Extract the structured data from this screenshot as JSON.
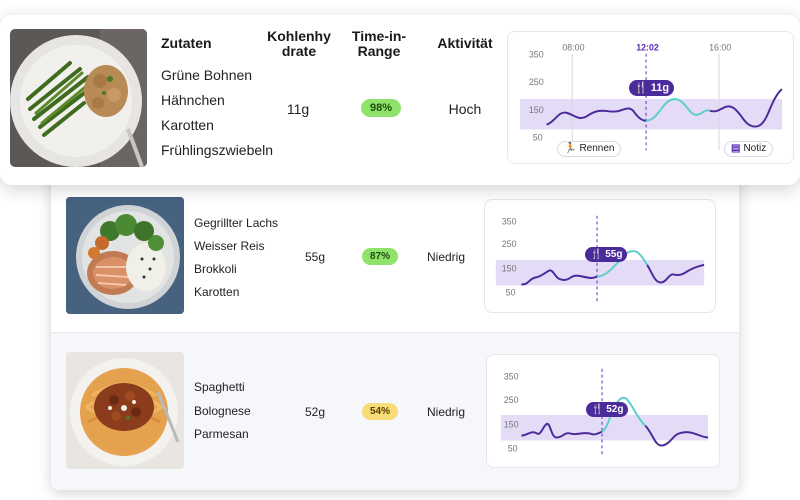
{
  "header": {
    "ingredients": "Zutaten",
    "carbs": "Kohlenhy\ndrate",
    "tir": "Time-in-\nRange",
    "activity": "Aktivität"
  },
  "meals": [
    {
      "ingredients": [
        "Grüne Bohnen",
        "Hähnchen",
        "Karotten",
        "Frühlingszwiebeln"
      ],
      "carbs": "11g",
      "tir": "98%",
      "tir_color": "#8fe36a",
      "activity": "Hoch",
      "chart": {
        "y_ticks": [
          "350",
          "250",
          "150",
          "50"
        ],
        "x_ticks": [
          "08:00",
          "12:02",
          "16:00"
        ],
        "meal_label": "11g",
        "chips": [
          "Rennen",
          "Notiz"
        ]
      }
    },
    {
      "ingredients": [
        "Gegrillter Lachs",
        "Weisser Reis",
        "Brokkoli",
        "Karotten"
      ],
      "carbs": "55g",
      "tir": "87%",
      "tir_color": "#8fe36a",
      "activity": "Niedrig",
      "chart": {
        "y_ticks": [
          "350",
          "250",
          "150",
          "50"
        ],
        "meal_label": "55g"
      }
    },
    {
      "ingredients": [
        "Spaghetti",
        "Bolognese",
        "Parmesan"
      ],
      "carbs": "52g",
      "tir": "54%",
      "tir_color": "#f7dc77",
      "activity": "Niedrig",
      "chart": {
        "y_ticks": [
          "350",
          "250",
          "150",
          "50"
        ],
        "meal_label": "52g"
      }
    }
  ],
  "colors": {
    "purple_line": "#4b2a9b",
    "teal_line": "#5ccfc8",
    "range_band": "#e4dcf7",
    "accent": "#5a2bb5"
  },
  "icons": {
    "meal": "fork-knife-icon",
    "run": "running-person-icon",
    "note": "note-document-icon"
  }
}
